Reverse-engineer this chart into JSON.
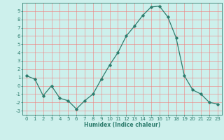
{
  "x": [
    0,
    1,
    2,
    3,
    4,
    5,
    6,
    7,
    8,
    9,
    10,
    11,
    12,
    13,
    14,
    15,
    16,
    17,
    18,
    19,
    20,
    21,
    22,
    23
  ],
  "y": [
    1.2,
    0.8,
    -1.2,
    0.0,
    -1.5,
    -1.8,
    -2.8,
    -1.8,
    -1.0,
    0.8,
    2.5,
    4.0,
    6.0,
    7.2,
    8.5,
    9.5,
    9.6,
    8.3,
    5.8,
    1.2,
    -0.5,
    -1.0,
    -2.0,
    -2.2
  ],
  "xlabel": "Humidex (Indice chaleur)",
  "line_color": "#2e7d6e",
  "marker": "D",
  "marker_size": 1.8,
  "bg_color": "#cdf0ec",
  "grid_color": "#f08080",
  "text_color": "#2e7d6e",
  "xlim": [
    -0.5,
    23.5
  ],
  "ylim": [
    -3.5,
    10.0
  ],
  "yticks": [
    -3,
    -2,
    -1,
    0,
    1,
    2,
    3,
    4,
    5,
    6,
    7,
    8,
    9
  ],
  "xticks": [
    0,
    1,
    2,
    3,
    4,
    5,
    6,
    7,
    8,
    9,
    10,
    11,
    12,
    13,
    14,
    15,
    16,
    17,
    18,
    19,
    20,
    21,
    22,
    23
  ],
  "label_fontsize": 5.0,
  "xlabel_fontsize": 5.5
}
